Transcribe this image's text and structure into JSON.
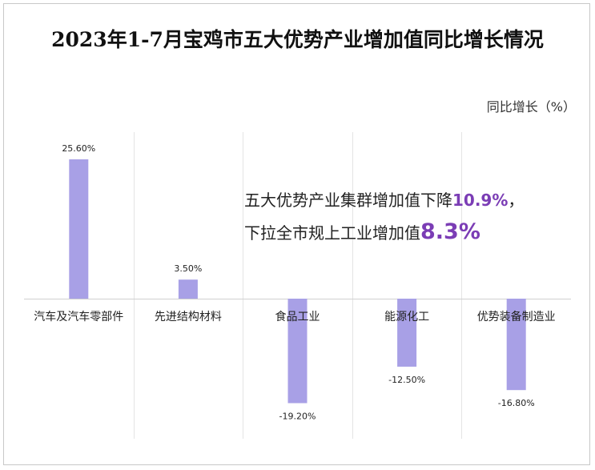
{
  "colors": {
    "bar": "#a8a0e6",
    "highlight": "#7b3db5",
    "grid": "#e4e4e4"
  },
  "chart_data": {
    "type": "bar",
    "title": "2023年1-7月宝鸡市五大优势产业增加值同比增长情况",
    "unit_label": "同比增长（%）",
    "categories": [
      "汽车及汽车零部件",
      "先进结构材料",
      "食品工业",
      "能源化工",
      "优势装备制造业"
    ],
    "values": [
      25.6,
      3.5,
      -19.2,
      -12.5,
      -16.8
    ],
    "data_labels": [
      "25.60%",
      "3.50%",
      "-19.20%",
      "-12.50%",
      "-16.80%"
    ],
    "ylim": [
      -25,
      30
    ],
    "grid": "vertical-separators",
    "legend": "none"
  },
  "annotation": {
    "line1_text": "五大优势产业集群增加值下降",
    "line1_value": "10.9%",
    "line1_suffix": "，",
    "line2_text": "下拉全市规上工业增加值",
    "line2_value": "8.3%"
  }
}
